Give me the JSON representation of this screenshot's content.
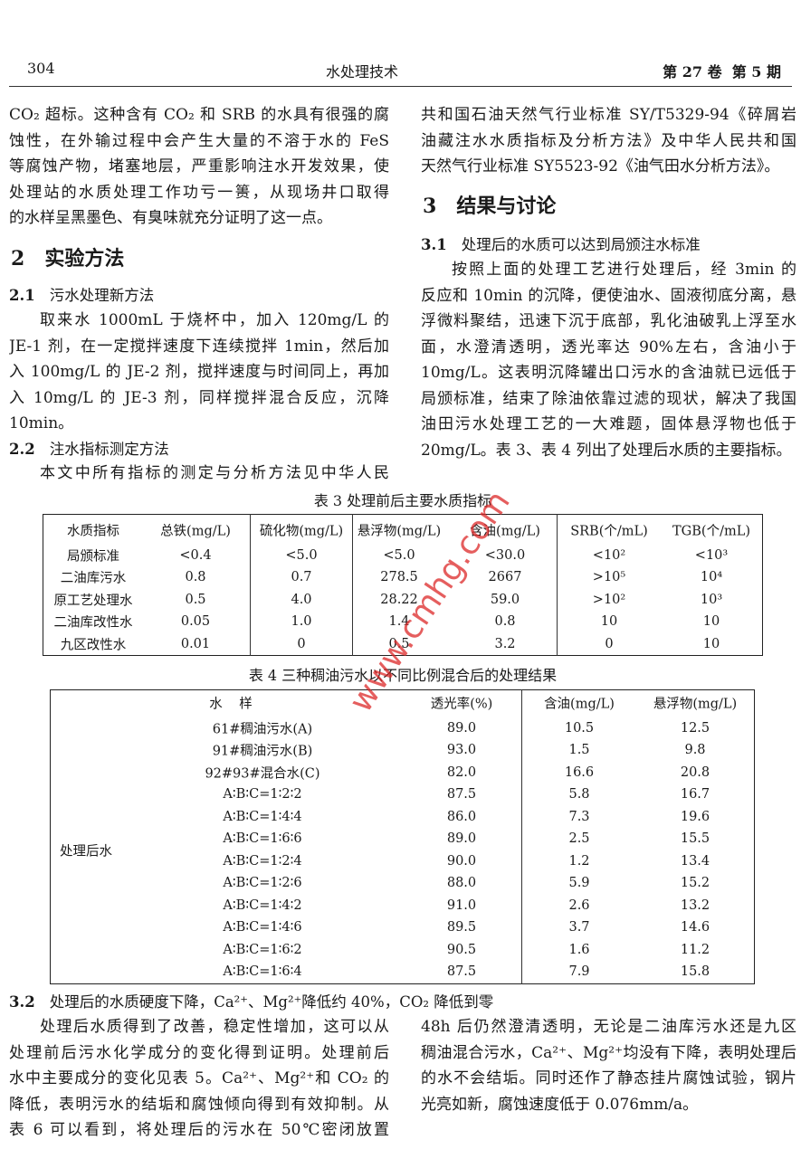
{
  "header": {
    "page": "304",
    "journal": "水处理技术",
    "issue": "第 27 卷  第 5 期"
  },
  "left_column": {
    "intro": [
      "CO₂ 超标。这种含有 CO₂ 和 SRB 的水具有很强的腐",
      "蚀性，在外输过程中会产生大量的不溶于水的 FeS",
      "等腐蚀产物，堵塞地层，严重影响注水开发效果，使",
      "处理站的水质处理工作功亏一篑，从现场井口取得",
      "的水样呈黑墨色、有臭味就充分证明了这一点。"
    ],
    "section_2": {
      "number": "2",
      "title": "实验方法"
    },
    "section_2_1": {
      "number": "2.1",
      "title": "污水处理新方法"
    },
    "section_2_1_text": [
      "取来水 1000mL 于烧杯中，加入 120mg/L 的",
      "JE-1 剂，在一定搅拌速度下连续搅拌 1min，然后加",
      "入 100mg/L 的 JE-2 剂，搅拌速度与时间同上，再加",
      "入 10mg/L 的 JE-3 剂，同样搅拌混合反应，沉降",
      "10min。"
    ],
    "section_2_2": {
      "number": "2.2",
      "title": "注水指标测定方法"
    },
    "section_2_2_text": [
      "本文中所有指标的测定与分析方法见中华人民"
    ]
  },
  "right_column": {
    "section_2_2_text": [
      "共和国石油天然气行业标准 SY/T5329-94《碎屑岩",
      "油藏注水水质指标及分析方法》及中华人民共和国",
      "天然气行业标准 SY5523-92《油气田水分析方法》。"
    ],
    "section_3": {
      "number": "3",
      "title": "结果与讨论"
    },
    "section_3_1": {
      "number": "3.1",
      "title": "处理后的水质可以达到局颁注水标准"
    },
    "section_3_1_text": [
      "按照上面的处理工艺进行处理后，经 3min 的",
      "反应和 10min 的沉降，便使油水、固液彻底分离，悬",
      "浮微料聚结，迅速下沉于底部，乳化油破乳上浮至水",
      "面，水澄清透明，透光率达 90%左右，含油小于",
      "10mg/L。这表明沉降罐出口污水的含油就已远低于",
      "局颁标准，结束了除油依靠过滤的现状，解决了我国",
      "油田污水处理工艺的一大难题，固体悬浮物也低于",
      "20mg/L。表 3、表 4 列出了处理后水质的主要指标。"
    ]
  },
  "table_3": {
    "caption": "表 3  处理前后主要水质指标",
    "headers": [
      "水质指标",
      "总铁(mg/L)",
      "硫化物(mg/L)",
      "悬浮物(mg/L)",
      "含油(mg/L)",
      "SRB(个/mL)",
      "TGB(个/mL)"
    ],
    "rows": [
      [
        "局颁标准",
        "<0.4",
        "<5.0",
        "<5.0",
        "<30.0",
        "<10²",
        "<10³"
      ],
      [
        "二油库污水",
        "0.8",
        "0.7",
        "278.5",
        "2667",
        ">10⁵",
        "10⁴"
      ],
      [
        "原工艺处理水",
        "0.5",
        "4.0",
        "28.22",
        "59.0",
        ">10²",
        "10³"
      ],
      [
        "二油库改性水",
        "0.05",
        "1.0",
        "1.4",
        "0.8",
        "10",
        "10"
      ],
      [
        "九区改性水",
        "0.01",
        "0",
        "0.5",
        "3.2",
        "0",
        "10"
      ]
    ]
  },
  "table_4": {
    "caption": "表 4  三种稠油污水以不同比例混合后的处理结果",
    "headers": [
      "水    样",
      "透光率(%)",
      "含油(mg/L)",
      "悬浮物(mg/L)"
    ],
    "group_label": "处理后水",
    "rows": [
      [
        "61#稠油污水(A)",
        "89.0",
        "10.5",
        "12.5"
      ],
      [
        "91#稠油污水(B)",
        "93.0",
        "1.5",
        "9.8"
      ],
      [
        "92#93#混合水(C)",
        "82.0",
        "16.6",
        "20.8"
      ],
      [
        "A∶B∶C=1∶2∶2",
        "87.5",
        "5.8",
        "16.7"
      ],
      [
        "A∶B∶C=1∶4∶4",
        "86.0",
        "7.3",
        "19.6"
      ],
      [
        "A∶B∶C=1∶6∶6",
        "89.0",
        "2.5",
        "15.5"
      ],
      [
        "A∶B∶C=1∶2∶4",
        "90.0",
        "1.2",
        "13.4"
      ],
      [
        "A∶B∶C=1∶2∶6",
        "88.0",
        "5.9",
        "15.2"
      ],
      [
        "A∶B∶C=1∶4∶2",
        "91.0",
        "2.6",
        "13.2"
      ],
      [
        "A∶B∶C=1∶4∶6",
        "89.5",
        "3.7",
        "14.6"
      ],
      [
        "A∶B∶C=1∶6∶2",
        "90.5",
        "1.6",
        "11.2"
      ],
      [
        "A∶B∶C=1∶6∶4",
        "87.5",
        "7.9",
        "15.8"
      ]
    ]
  },
  "section_3_2": {
    "number": "3.2",
    "title": "处理后的水质硬度下降，Ca²⁺、Mg²⁺降低约 40%，CO₂ 降低到零",
    "left_text": [
      "处理后水质得到了改善，稳定性增加，这可以从",
      "处理前后污水化学成分的变化得到证明。处理前后",
      "水中主要成分的变化见表 5。Ca²⁺、Mg²⁺和 CO₂ 的",
      "降低，表明污水的结垢和腐蚀倾向得到有效抑制。从",
      "表 6 可以看到，将处理后的污水在 50℃密闭放置"
    ],
    "right_text": [
      "48h 后仍然澄清透明，无论是二油库污水还是九区",
      "稠油混合污水，Ca²⁺、Mg²⁺均没有下降，表明处理后",
      "的水不会结垢。同时还作了静态挂片腐蚀试验，钢片",
      "光亮如新，腐蚀速度低于 0.076mm/a。"
    ]
  },
  "watermark": "www.cmhg.com"
}
